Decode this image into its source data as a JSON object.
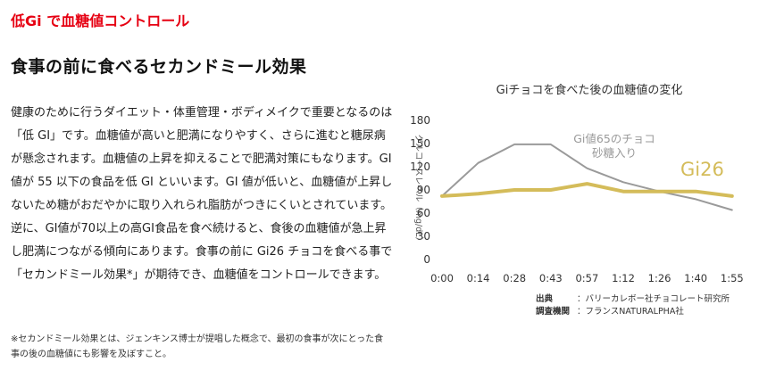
{
  "page": {
    "red_title": "低Gi で血糖値コントロール",
    "heading": "食事の前に食べるセカンドミール効果",
    "body": "健康のために行うダイエット・体重管理・ボディメイクで重要となるのは「低 GI」です。血糖値が高いと肥満になりやすく、さらに進むと糖尿病が懸念されます。血糖値の上昇を抑えることで肥満対策にもなります。GI 値が 55 以下の食品を低 GI といいます。GI 値が低いと、血糖値が上昇しないため糖がおだやかに取り入れられ脂肪がつきにくいとされています。逆に、GI値が70以上の高GI食品を食べ続けると、食後の血糖値が急上昇し肥満につながる傾向にあります。食事の前に Gi26 チョコを食べる事で「セカンドミール効果*」が期待でき、血糖値をコントロールできます。",
    "note": "※セカンドミール効果とは、ジェンキンス博士が提唱した概念で、最初の食事が次にとった食事の後の血糖値にも影響を及ぼすこと。"
  },
  "chart_data": {
    "type": "line",
    "title": "Giチョコを食べた後の血糖値の変化",
    "ylabel": "グルコースレベル（mg/dL）",
    "xlabel": "",
    "x": [
      "0:00",
      "0:14",
      "0:28",
      "0:43",
      "0:57",
      "1:12",
      "1:26",
      "1:40",
      "1:55"
    ],
    "ylim": [
      0,
      180
    ],
    "yticks": [
      0,
      30,
      60,
      90,
      120,
      150,
      180
    ],
    "grid": false,
    "series": [
      {
        "name": "Gi値65のチョコ 砂糖入り",
        "label_lines": [
          "Gi値65のチョコ",
          "砂糖入り"
        ],
        "color": "#9a9a9a",
        "values": [
          82,
          125,
          149,
          149,
          118,
          100,
          88,
          78,
          64
        ]
      },
      {
        "name": "Gi26",
        "label_lines": [
          "Gi26"
        ],
        "color": "#d4bc5a",
        "values": [
          82,
          85,
          90,
          90,
          98,
          88,
          88,
          88,
          82
        ]
      }
    ],
    "source": [
      {
        "key": "出典",
        "value": "：バリーカレボー社チョコレート研究所"
      },
      {
        "key": "調査機関",
        "value": "：フランスNATURALPHA社"
      }
    ]
  }
}
